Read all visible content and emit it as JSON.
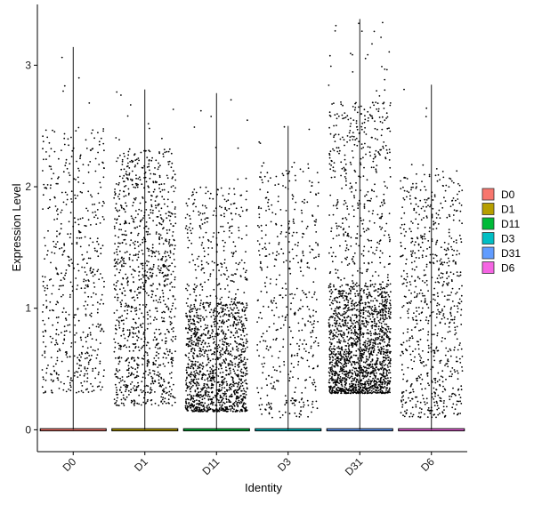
{
  "chart_data": {
    "type": "violin-jitter",
    "xlabel": "Identity",
    "ylabel": "Expression Level",
    "ylim": [
      -0.18,
      3.5
    ],
    "yticks": [
      0,
      1,
      2,
      3
    ],
    "grid": false,
    "legend_position": "right",
    "categories": [
      "D0",
      "D1",
      "D11",
      "D3",
      "D31",
      "D6"
    ],
    "series": [
      {
        "name": "D0",
        "color": "#F8766D",
        "max": 3.15,
        "n_points": 560,
        "density": "sparse-uniform",
        "typical_range": [
          0.3,
          2.5
        ]
      },
      {
        "name": "D1",
        "color": "#B79F00",
        "max": 2.8,
        "n_points": 1100,
        "density": "uniform",
        "typical_range": [
          0.2,
          2.3
        ]
      },
      {
        "name": "D11",
        "color": "#00BA38",
        "max": 2.77,
        "n_points": 1500,
        "density": "dense-low",
        "typical_range": [
          0.15,
          2.0
        ]
      },
      {
        "name": "D3",
        "color": "#00BFC4",
        "max": 2.5,
        "n_points": 460,
        "density": "sparse-uniform",
        "typical_range": [
          0.1,
          2.2
        ]
      },
      {
        "name": "D31",
        "color": "#619CFF",
        "max": 3.38,
        "n_points": 2100,
        "density": "dense-low",
        "typical_range": [
          0.3,
          2.7
        ]
      },
      {
        "name": "D6",
        "color": "#F564E3",
        "max": 2.84,
        "n_points": 750,
        "density": "uniform",
        "typical_range": [
          0.1,
          2.1
        ]
      }
    ]
  }
}
